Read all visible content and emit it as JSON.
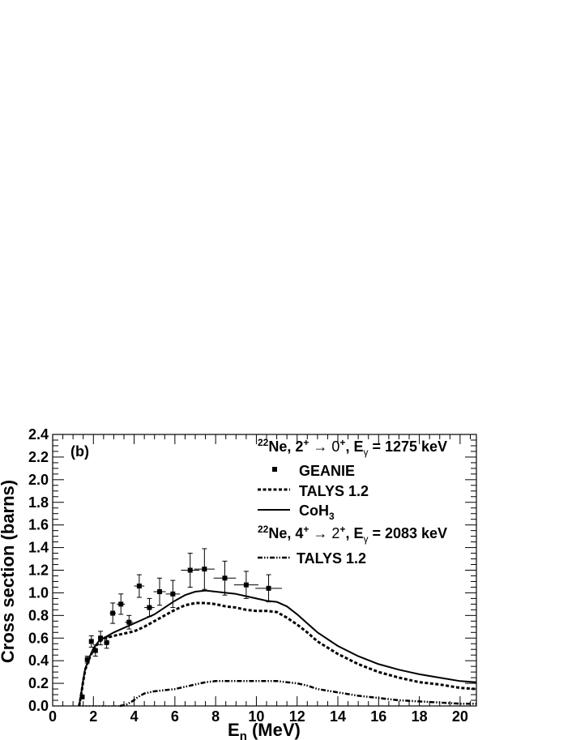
{
  "chart_data": {
    "type": "scatter",
    "panel_label": "(b)",
    "xlabel": {
      "main": "E",
      "sub": "n",
      "rest": " (MeV)"
    },
    "ylabel": "Cross section (barns)",
    "xlim": [
      0,
      20.8
    ],
    "ylim": [
      0,
      2.4
    ],
    "xticks": [
      "0",
      "2",
      "4",
      "6",
      "8",
      "10",
      "12",
      "14",
      "16",
      "18",
      "20"
    ],
    "yticks": [
      "0.0",
      "0.2",
      "0.4",
      "0.6",
      "0.8",
      "1.0",
      "1.2",
      "1.4",
      "1.6",
      "1.8",
      "2.0",
      "2.2",
      "2.4"
    ],
    "grid": false,
    "legend_position": "top-right",
    "legend": {
      "header1": {
        "mass": "22",
        "nucleus": "Ne, 2",
        "s1": "+",
        "arrow": " → 0",
        "s2": "+",
        "comma": ", E",
        "gsub": "γ",
        "energy": " = 1275 keV"
      },
      "entry_geanie": "GEANIE",
      "entry_talys_a": "TALYS 1.2",
      "entry_coh": {
        "main": "CoH",
        "sub": "3"
      },
      "header2": {
        "mass": "22",
        "nucleus": "Ne, 4",
        "s1": "+",
        "arrow": " → 2",
        "s2": "+",
        "comma": ", E",
        "gsub": "γ",
        "energy": " = 2083 keV"
      },
      "entry_talys_b": "TALYS 1.2"
    },
    "series": [
      {
        "name": "GEANIE",
        "style": "markers",
        "points": [
          {
            "x": 1.45,
            "y": 0.08,
            "xerr": 0.1,
            "yerr": 0.0
          },
          {
            "x": 1.7,
            "y": 0.41,
            "xerr": 0.1,
            "yerr": 0.03
          },
          {
            "x": 1.9,
            "y": 0.57,
            "xerr": 0.1,
            "yerr": 0.05
          },
          {
            "x": 2.1,
            "y": 0.49,
            "xerr": 0.1,
            "yerr": 0.05
          },
          {
            "x": 2.35,
            "y": 0.6,
            "xerr": 0.12,
            "yerr": 0.06
          },
          {
            "x": 2.65,
            "y": 0.56,
            "xerr": 0.14,
            "yerr": 0.05
          },
          {
            "x": 2.95,
            "y": 0.82,
            "xerr": 0.15,
            "yerr": 0.09
          },
          {
            "x": 3.35,
            "y": 0.9,
            "xerr": 0.2,
            "yerr": 0.09
          },
          {
            "x": 3.75,
            "y": 0.74,
            "xerr": 0.2,
            "yerr": 0.06
          },
          {
            "x": 4.25,
            "y": 1.06,
            "xerr": 0.25,
            "yerr": 0.1
          },
          {
            "x": 4.75,
            "y": 0.87,
            "xerr": 0.25,
            "yerr": 0.08
          },
          {
            "x": 5.25,
            "y": 1.01,
            "xerr": 0.3,
            "yerr": 0.12
          },
          {
            "x": 5.9,
            "y": 0.99,
            "xerr": 0.35,
            "yerr": 0.12
          },
          {
            "x": 6.75,
            "y": 1.2,
            "xerr": 0.45,
            "yerr": 0.15
          },
          {
            "x": 7.45,
            "y": 1.21,
            "xerr": 0.5,
            "yerr": 0.18
          },
          {
            "x": 8.45,
            "y": 1.13,
            "xerr": 0.55,
            "yerr": 0.15
          },
          {
            "x": 9.5,
            "y": 1.07,
            "xerr": 0.6,
            "yerr": 0.12
          },
          {
            "x": 10.6,
            "y": 1.04,
            "xerr": 0.65,
            "yerr": 0.12
          }
        ]
      },
      {
        "name": "TALYS 1.2",
        "style": "dashed",
        "x": [
          1.3,
          1.4,
          1.5,
          1.6,
          1.8,
          2.0,
          2.3,
          2.6,
          3.0,
          3.5,
          4.0,
          4.5,
          5.0,
          5.5,
          6.0,
          6.5,
          7.0,
          7.5,
          8.0,
          8.5,
          9.0,
          9.5,
          10.0,
          10.5,
          11.0,
          11.5,
          12.0,
          12.5,
          13.0,
          14.0,
          15.0,
          16.0,
          17.0,
          18.0,
          19.0,
          20.0,
          20.8
        ],
        "y": [
          0.0,
          0.1,
          0.22,
          0.32,
          0.42,
          0.5,
          0.57,
          0.6,
          0.62,
          0.64,
          0.66,
          0.7,
          0.75,
          0.8,
          0.85,
          0.89,
          0.91,
          0.91,
          0.9,
          0.88,
          0.87,
          0.85,
          0.84,
          0.84,
          0.83,
          0.78,
          0.72,
          0.65,
          0.57,
          0.46,
          0.37,
          0.3,
          0.25,
          0.21,
          0.19,
          0.16,
          0.15
        ]
      },
      {
        "name": "CoH3",
        "style": "solid",
        "x": [
          1.3,
          1.4,
          1.5,
          1.6,
          1.8,
          2.0,
          2.3,
          2.6,
          3.0,
          3.5,
          4.0,
          4.5,
          5.0,
          5.5,
          6.0,
          6.5,
          7.0,
          7.5,
          8.0,
          8.5,
          9.0,
          9.5,
          10.0,
          10.5,
          11.0,
          11.5,
          12.0,
          12.5,
          13.0,
          14.0,
          15.0,
          16.0,
          17.0,
          18.0,
          19.0,
          20.0,
          20.8
        ],
        "y": [
          0.0,
          0.11,
          0.23,
          0.33,
          0.43,
          0.51,
          0.58,
          0.61,
          0.65,
          0.69,
          0.73,
          0.77,
          0.81,
          0.87,
          0.93,
          0.98,
          1.01,
          1.02,
          1.01,
          1.0,
          0.99,
          0.97,
          0.95,
          0.93,
          0.92,
          0.88,
          0.81,
          0.73,
          0.65,
          0.53,
          0.44,
          0.37,
          0.32,
          0.28,
          0.25,
          0.22,
          0.21
        ]
      },
      {
        "name": "TALYS 1.2",
        "style": "dash-dot-dot",
        "x": [
          3.3,
          3.6,
          3.9,
          4.2,
          4.5,
          5.0,
          5.5,
          6.0,
          6.5,
          7.0,
          7.5,
          8.0,
          8.5,
          9.0,
          9.5,
          10.0,
          10.5,
          11.0,
          11.5,
          12.0,
          12.5,
          13.0,
          14.0,
          15.0,
          16.0,
          17.0,
          18.0,
          19.0,
          20.0,
          20.8
        ],
        "y": [
          0.0,
          0.01,
          0.04,
          0.08,
          0.11,
          0.13,
          0.14,
          0.15,
          0.17,
          0.19,
          0.21,
          0.22,
          0.22,
          0.22,
          0.22,
          0.22,
          0.22,
          0.22,
          0.21,
          0.2,
          0.18,
          0.15,
          0.12,
          0.09,
          0.07,
          0.05,
          0.04,
          0.03,
          0.02,
          0.02
        ]
      },
      {
        "name": "",
        "style": "dotted-baseline",
        "x": [
          1.3,
          3.3
        ],
        "y": [
          0.0,
          0.0
        ]
      }
    ]
  }
}
